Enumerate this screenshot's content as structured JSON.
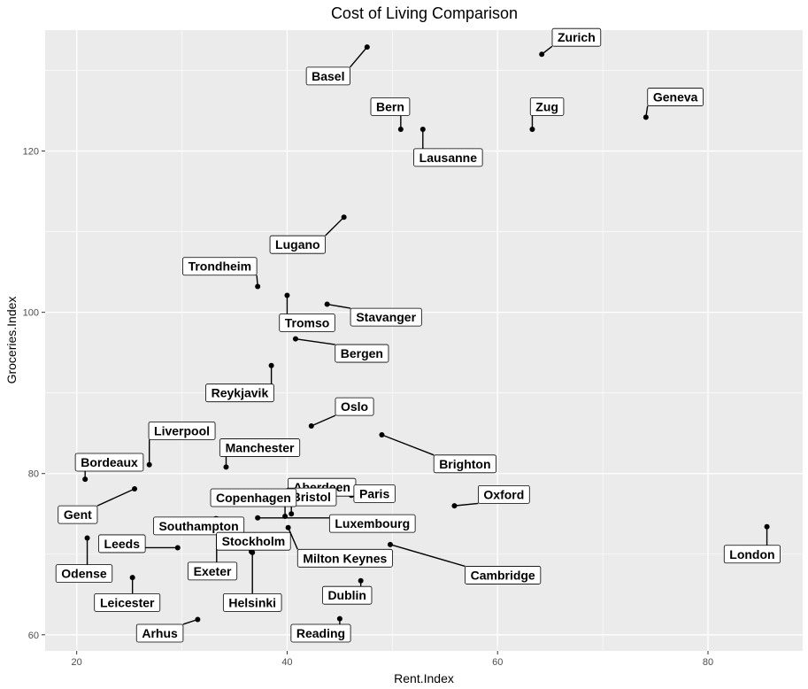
{
  "chart_data": {
    "type": "scatter",
    "title": "Cost of Living Comparison",
    "xlabel": "Rent.Index",
    "ylabel": "Groceries.Index",
    "xlim": [
      17,
      89
    ],
    "ylim": [
      58,
      135
    ],
    "x_ticks": [
      20,
      40,
      60,
      80
    ],
    "y_ticks": [
      60,
      80,
      100,
      120
    ],
    "grid": true,
    "background": "#ebebeb",
    "gridline_color": "#ffffff",
    "point_color": "#000000",
    "points": [
      {
        "name": "Zurich",
        "x": 64.2,
        "y": 132.0
      },
      {
        "name": "Basel",
        "x": 47.6,
        "y": 132.9
      },
      {
        "name": "Geneva",
        "x": 74.1,
        "y": 124.2
      },
      {
        "name": "Zug",
        "x": 63.3,
        "y": 122.7
      },
      {
        "name": "Bern",
        "x": 50.8,
        "y": 122.7
      },
      {
        "name": "Lausanne",
        "x": 52.9,
        "y": 122.7
      },
      {
        "name": "Lugano",
        "x": 45.4,
        "y": 111.8
      },
      {
        "name": "Trondheim",
        "x": 37.2,
        "y": 103.2
      },
      {
        "name": "Tromso",
        "x": 40.0,
        "y": 102.1
      },
      {
        "name": "Stavanger",
        "x": 43.8,
        "y": 101.0
      },
      {
        "name": "Bergen",
        "x": 40.8,
        "y": 96.7
      },
      {
        "name": "Reykjavik",
        "x": 38.5,
        "y": 93.4
      },
      {
        "name": "Oslo",
        "x": 42.3,
        "y": 85.9
      },
      {
        "name": "Brighton",
        "x": 49.0,
        "y": 84.8
      },
      {
        "name": "Liverpool",
        "x": 26.9,
        "y": 81.1
      },
      {
        "name": "Manchester",
        "x": 34.2,
        "y": 80.8
      },
      {
        "name": "Aberdeen",
        "x": 41.0,
        "y": 76.4
      },
      {
        "name": "Bordeaux",
        "x": 20.8,
        "y": 79.3
      },
      {
        "name": "Gent",
        "x": 25.5,
        "y": 78.1
      },
      {
        "name": "Paris",
        "x": 46.1,
        "y": 77.3
      },
      {
        "name": "Bristol",
        "x": 40.4,
        "y": 75.0
      },
      {
        "name": "Oxford",
        "x": 55.9,
        "y": 76.0
      },
      {
        "name": "Copenhagen",
        "x": 39.8,
        "y": 74.7
      },
      {
        "name": "Southampton",
        "x": 33.2,
        "y": 74.4
      },
      {
        "name": "Luxembourg",
        "x": 37.2,
        "y": 74.5
      },
      {
        "name": "London",
        "x": 85.6,
        "y": 73.4
      },
      {
        "name": "Milton Keynes",
        "x": 40.1,
        "y": 73.3
      },
      {
        "name": "Odense",
        "x": 21.0,
        "y": 72.0
      },
      {
        "name": "Cambridge",
        "x": 49.8,
        "y": 71.2
      },
      {
        "name": "Leeds",
        "x": 29.6,
        "y": 70.8
      },
      {
        "name": "Stockholm",
        "x": 36.6,
        "y": 70.3
      },
      {
        "name": "Helsinki",
        "x": 36.7,
        "y": 70.2
      },
      {
        "name": "Exeter",
        "x": 33.3,
        "y": 74.4
      },
      {
        "name": "Leicester",
        "x": 25.3,
        "y": 67.1
      },
      {
        "name": "Dublin",
        "x": 47.0,
        "y": 66.7
      },
      {
        "name": "Arhus",
        "x": 31.5,
        "y": 61.9
      },
      {
        "name": "Reading",
        "x": 45.0,
        "y": 62.0
      }
    ],
    "labels": [
      {
        "name": "Zurich",
        "lx": 67.5,
        "ly": 134.1
      },
      {
        "name": "Basel",
        "lx": 43.9,
        "ly": 129.3
      },
      {
        "name": "Geneva",
        "lx": 76.9,
        "ly": 126.7
      },
      {
        "name": "Zug",
        "lx": 64.7,
        "ly": 125.5
      },
      {
        "name": "Bern",
        "lx": 49.8,
        "ly": 125.5
      },
      {
        "name": "Lausanne",
        "lx": 55.3,
        "ly": 119.2
      },
      {
        "name": "Lugano",
        "lx": 41.0,
        "ly": 108.4
      },
      {
        "name": "Trondheim",
        "lx": 33.6,
        "ly": 105.7
      },
      {
        "name": "Tromso",
        "lx": 41.9,
        "ly": 98.7
      },
      {
        "name": "Stavanger",
        "lx": 49.4,
        "ly": 99.4
      },
      {
        "name": "Bergen",
        "lx": 47.1,
        "ly": 94.9
      },
      {
        "name": "Reykjavik",
        "lx": 35.5,
        "ly": 90.0
      },
      {
        "name": "Oslo",
        "lx": 46.4,
        "ly": 88.3
      },
      {
        "name": "Brighton",
        "lx": 56.9,
        "ly": 81.2
      },
      {
        "name": "Liverpool",
        "lx": 30.0,
        "ly": 85.3
      },
      {
        "name": "Manchester",
        "lx": 37.4,
        "ly": 83.2
      },
      {
        "name": "Aberdeen",
        "lx": 43.3,
        "ly": 78.3
      },
      {
        "name": "Bordeaux",
        "lx": 23.1,
        "ly": 81.4
      },
      {
        "name": "Gent",
        "lx": 20.1,
        "ly": 74.9
      },
      {
        "name": "Paris",
        "lx": 48.3,
        "ly": 77.5
      },
      {
        "name": "Bristol",
        "lx": 42.3,
        "ly": 77.1
      },
      {
        "name": "Oxford",
        "lx": 60.6,
        "ly": 77.4
      },
      {
        "name": "Copenhagen",
        "lx": 36.8,
        "ly": 77.0
      },
      {
        "name": "Southampton",
        "lx": 31.6,
        "ly": 73.5
      },
      {
        "name": "Luxembourg",
        "lx": 48.1,
        "ly": 73.8
      },
      {
        "name": "London",
        "lx": 84.2,
        "ly": 70.0
      },
      {
        "name": "Milton Keynes",
        "lx": 45.5,
        "ly": 69.5
      },
      {
        "name": "Odense",
        "lx": 20.7,
        "ly": 67.6
      },
      {
        "name": "Cambridge",
        "lx": 60.5,
        "ly": 67.4
      },
      {
        "name": "Leeds",
        "lx": 24.3,
        "ly": 71.3
      },
      {
        "name": "Stockholm",
        "lx": 36.8,
        "ly": 71.6
      },
      {
        "name": "Helsinki",
        "lx": 36.7,
        "ly": 64.0
      },
      {
        "name": "Exeter",
        "lx": 32.9,
        "ly": 67.9
      },
      {
        "name": "Leicester",
        "lx": 24.8,
        "ly": 64.0
      },
      {
        "name": "Dublin",
        "lx": 45.7,
        "ly": 64.9
      },
      {
        "name": "Arhus",
        "lx": 27.9,
        "ly": 60.2
      },
      {
        "name": "Reading",
        "lx": 43.2,
        "ly": 60.2
      }
    ]
  }
}
